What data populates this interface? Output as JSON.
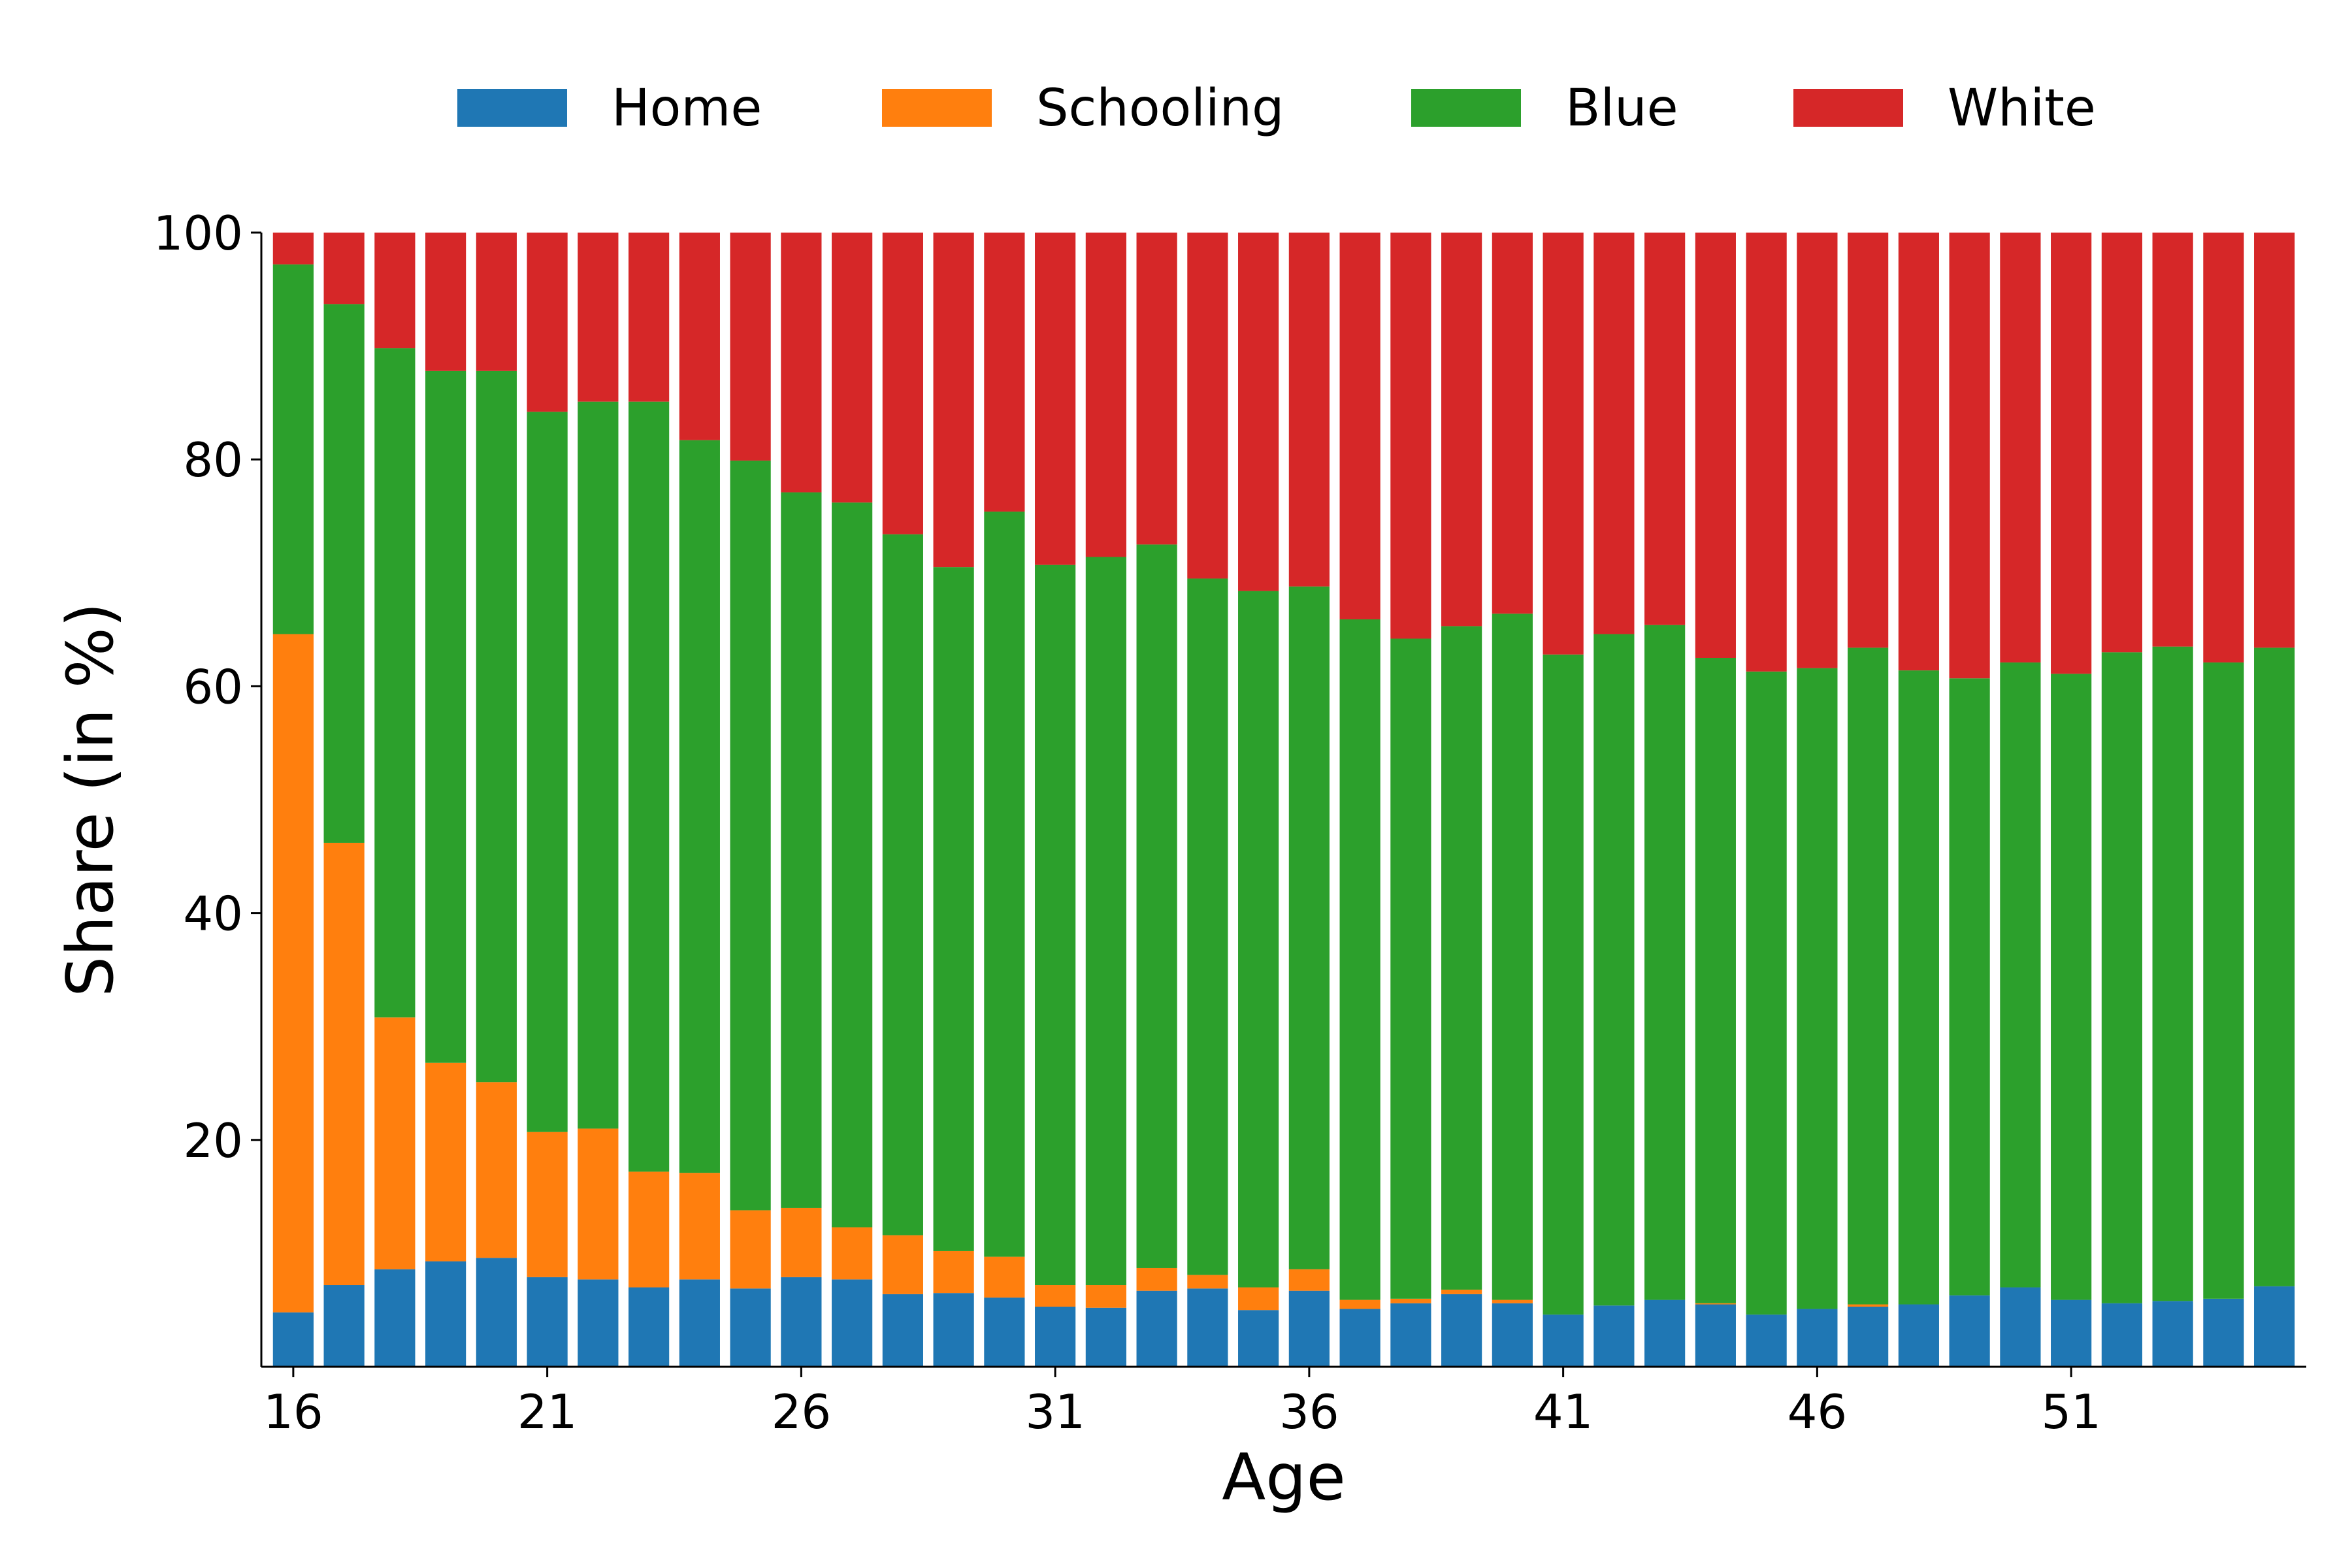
{
  "chart_data": {
    "type": "bar",
    "stacked": true,
    "xlabel": "Age",
    "ylabel": "Share (in %)",
    "ylim": [
      0,
      100
    ],
    "yticks": [
      20,
      40,
      60,
      80,
      100
    ],
    "xticks": [
      16,
      21,
      26,
      31,
      36,
      41,
      46,
      51
    ],
    "categories": [
      16,
      17,
      18,
      19,
      20,
      21,
      22,
      23,
      24,
      25,
      26,
      27,
      28,
      29,
      30,
      31,
      32,
      33,
      34,
      35,
      36,
      37,
      38,
      39,
      40,
      41,
      42,
      43,
      44,
      45,
      46,
      47,
      48,
      49,
      50,
      51,
      52,
      53,
      54,
      55
    ],
    "legend_position": "top-center",
    "grid": false,
    "series": [
      {
        "name": "Home",
        "color": "#1f77b4",
        "values": [
          4.8,
          7.2,
          8.6,
          9.3,
          9.6,
          7.9,
          7.7,
          7.0,
          7.7,
          6.9,
          7.9,
          7.7,
          6.4,
          6.5,
          6.1,
          5.3,
          5.2,
          6.7,
          6.9,
          5.0,
          6.7,
          5.1,
          5.6,
          6.4,
          5.6,
          4.6,
          5.4,
          5.9,
          5.5,
          4.6,
          5.1,
          5.3,
          5.5,
          6.3,
          7.0,
          5.9,
          5.6,
          5.8,
          6.0,
          7.1
        ]
      },
      {
        "name": "Schooling",
        "color": "#ff7f0e",
        "values": [
          59.8,
          39.0,
          22.2,
          17.5,
          15.5,
          12.8,
          13.3,
          10.2,
          9.4,
          6.9,
          6.1,
          4.6,
          5.2,
          3.7,
          3.6,
          1.9,
          2.0,
          2.0,
          1.2,
          2.0,
          1.9,
          0.8,
          0.4,
          0.4,
          0.3,
          0.0,
          0.0,
          0.0,
          0.1,
          0.0,
          0.0,
          0.2,
          0.0,
          0.0,
          0.0,
          0.0,
          0.0,
          0.0,
          0.0,
          0.0
        ]
      },
      {
        "name": "Blue",
        "color": "#2ca02c",
        "values": [
          32.6,
          47.5,
          59.0,
          61.0,
          62.7,
          63.5,
          64.1,
          67.9,
          64.6,
          66.1,
          63.1,
          63.9,
          61.8,
          60.3,
          65.7,
          63.5,
          64.2,
          63.8,
          61.4,
          61.4,
          60.2,
          60.0,
          58.2,
          58.5,
          60.5,
          58.2,
          59.2,
          59.5,
          56.9,
          56.7,
          56.5,
          57.9,
          55.9,
          54.4,
          55.1,
          55.2,
          57.4,
          57.7,
          56.1,
          56.3
        ]
      },
      {
        "name": "White",
        "color": "#d62728",
        "values": [
          2.8,
          6.3,
          10.2,
          12.2,
          12.2,
          15.8,
          14.9,
          14.9,
          18.3,
          20.1,
          22.9,
          23.8,
          26.6,
          29.5,
          24.6,
          29.3,
          28.6,
          27.5,
          30.5,
          31.6,
          31.2,
          34.1,
          35.8,
          34.7,
          33.6,
          37.2,
          35.4,
          34.6,
          37.5,
          38.7,
          38.4,
          36.6,
          38.6,
          39.3,
          37.9,
          38.9,
          37.0,
          36.5,
          37.9,
          36.6
        ]
      }
    ]
  }
}
